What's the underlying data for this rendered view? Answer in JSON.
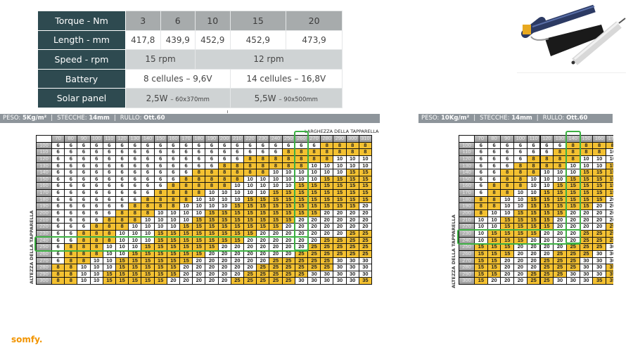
{
  "spec_table": {
    "rows": [
      {
        "label": "Torque - Nm",
        "cells": [
          {
            "text": "3"
          },
          {
            "text": "6"
          },
          {
            "text": "10"
          },
          {
            "text": "15"
          },
          {
            "text": "20"
          }
        ]
      },
      {
        "label": "Length - mm",
        "cells": [
          {
            "text": "417,8"
          },
          {
            "text": "439,9"
          },
          {
            "text": "452,9"
          },
          {
            "text": "452,9"
          },
          {
            "text": "473,9"
          }
        ]
      },
      {
        "label": "Speed - rpm",
        "cells": [
          {
            "text": "15 rpm"
          },
          {
            "text": "12 rpm"
          }
        ]
      },
      {
        "label": "Battery",
        "cells": [
          {
            "text": "8 cellules – 9,6V"
          },
          {
            "text": "14 cellules – 16,8V"
          }
        ]
      },
      {
        "label": "Solar panel",
        "cells": [
          {
            "text": "2,5W",
            "small": "– 60x370mm"
          },
          {
            "text": "5,5W",
            "small": "– 90x500mm"
          }
        ]
      }
    ]
  },
  "colors": {
    "label_bg": "#2e4a50",
    "yellow": "#f4c131",
    "highlight": "#3cb043",
    "brand": "#f29400"
  },
  "left_chart": {
    "info": {
      "peso_label": "PESO:",
      "peso_value": "5Kg/m²",
      "stecche_label": "STECCHE:",
      "stecche_value": "14mm",
      "rullo_label": "RULLO:",
      "rullo_value": "Ott.60"
    },
    "x_label": "LARGHEZZA DELLA TAPPARELLA",
    "y_label": "ALTEZZA DELLA TAPPARELLA",
    "columns": [
      70,
      80,
      90,
      100,
      110,
      120,
      130,
      140,
      150,
      160,
      170,
      180,
      190,
      200,
      210,
      220,
      230,
      240,
      250,
      260,
      270,
      280,
      290,
      300,
      310
    ],
    "rows": [
      100,
      110,
      120,
      130,
      140,
      150,
      160,
      170,
      180,
      190,
      200,
      210,
      220,
      230,
      240,
      250,
      260,
      270,
      280,
      290,
      300
    ],
    "highlight_column": 260,
    "highlight_rows": [
      240,
      250
    ],
    "values": [
      [
        6,
        6,
        6,
        6,
        6,
        6,
        6,
        6,
        6,
        6,
        6,
        6,
        6,
        6,
        6,
        6,
        6,
        6,
        6,
        6,
        6,
        8,
        8,
        8,
        8
      ],
      [
        6,
        6,
        6,
        6,
        6,
        6,
        6,
        6,
        6,
        6,
        6,
        6,
        6,
        6,
        6,
        6,
        6,
        6,
        8,
        8,
        8,
        8,
        8,
        8,
        8
      ],
      [
        6,
        6,
        6,
        6,
        6,
        6,
        6,
        6,
        6,
        6,
        6,
        6,
        6,
        6,
        6,
        8,
        8,
        8,
        8,
        8,
        8,
        8,
        10,
        10,
        10
      ],
      [
        6,
        6,
        6,
        6,
        6,
        6,
        6,
        6,
        6,
        6,
        6,
        6,
        6,
        8,
        8,
        8,
        8,
        8,
        8,
        8,
        10,
        10,
        10,
        10,
        10
      ],
      [
        6,
        6,
        6,
        6,
        6,
        6,
        6,
        6,
        6,
        6,
        6,
        8,
        8,
        8,
        8,
        8,
        8,
        10,
        10,
        10,
        10,
        10,
        10,
        15,
        15
      ],
      [
        6,
        6,
        6,
        6,
        6,
        6,
        6,
        6,
        6,
        6,
        8,
        8,
        8,
        8,
        8,
        10,
        10,
        10,
        10,
        10,
        10,
        15,
        15,
        15,
        15
      ],
      [
        6,
        6,
        6,
        6,
        6,
        6,
        6,
        6,
        6,
        8,
        8,
        8,
        8,
        8,
        10,
        10,
        10,
        10,
        10,
        15,
        15,
        15,
        15,
        15,
        15
      ],
      [
        6,
        6,
        6,
        6,
        6,
        6,
        6,
        6,
        8,
        8,
        8,
        8,
        10,
        10,
        10,
        10,
        10,
        15,
        15,
        15,
        15,
        15,
        15,
        15,
        15
      ],
      [
        6,
        6,
        6,
        6,
        6,
        6,
        6,
        8,
        8,
        8,
        8,
        10,
        10,
        10,
        10,
        15,
        15,
        15,
        15,
        15,
        15,
        15,
        15,
        15,
        15
      ],
      [
        6,
        6,
        6,
        6,
        6,
        6,
        8,
        8,
        8,
        8,
        10,
        10,
        10,
        10,
        15,
        15,
        15,
        15,
        15,
        15,
        15,
        15,
        15,
        15,
        20
      ],
      [
        6,
        6,
        6,
        6,
        6,
        8,
        8,
        8,
        10,
        10,
        10,
        10,
        15,
        15,
        15,
        15,
        15,
        15,
        15,
        15,
        15,
        20,
        20,
        20,
        20
      ],
      [
        6,
        6,
        6,
        6,
        8,
        8,
        8,
        10,
        10,
        10,
        10,
        15,
        15,
        15,
        15,
        15,
        15,
        15,
        15,
        20,
        20,
        20,
        20,
        20,
        20
      ],
      [
        6,
        6,
        6,
        8,
        8,
        8,
        10,
        10,
        10,
        10,
        15,
        15,
        15,
        15,
        15,
        15,
        15,
        15,
        20,
        20,
        20,
        20,
        20,
        20,
        20
      ],
      [
        6,
        6,
        8,
        8,
        8,
        10,
        10,
        10,
        15,
        15,
        15,
        15,
        15,
        15,
        15,
        15,
        20,
        20,
        20,
        20,
        20,
        20,
        20,
        25,
        25
      ],
      [
        6,
        6,
        8,
        8,
        8,
        10,
        10,
        10,
        15,
        15,
        15,
        15,
        15,
        15,
        15,
        20,
        20,
        20,
        20,
        20,
        20,
        25,
        25,
        25,
        25
      ],
      [
        6,
        8,
        8,
        8,
        10,
        10,
        10,
        15,
        15,
        15,
        15,
        15,
        15,
        20,
        20,
        20,
        20,
        20,
        20,
        20,
        25,
        25,
        25,
        25,
        25
      ],
      [
        6,
        8,
        8,
        8,
        10,
        10,
        15,
        15,
        15,
        15,
        15,
        15,
        20,
        20,
        20,
        20,
        20,
        20,
        20,
        25,
        25,
        25,
        25,
        25,
        25
      ],
      [
        6,
        8,
        8,
        10,
        10,
        15,
        15,
        15,
        15,
        15,
        15,
        20,
        20,
        20,
        20,
        20,
        20,
        25,
        25,
        25,
        25,
        25,
        30,
        30,
        30
      ],
      [
        8,
        8,
        10,
        10,
        10,
        15,
        15,
        15,
        15,
        15,
        20,
        20,
        20,
        20,
        20,
        20,
        25,
        25,
        25,
        25,
        25,
        25,
        30,
        30,
        30
      ],
      [
        8,
        8,
        10,
        10,
        15,
        15,
        15,
        15,
        15,
        15,
        20,
        20,
        20,
        20,
        20,
        25,
        25,
        25,
        25,
        25,
        30,
        30,
        30,
        30,
        30
      ],
      [
        8,
        8,
        10,
        10,
        15,
        15,
        15,
        15,
        15,
        20,
        20,
        20,
        20,
        20,
        25,
        25,
        25,
        25,
        25,
        30,
        30,
        30,
        30,
        30,
        35
      ]
    ]
  },
  "right_chart": {
    "info": {
      "peso_label": "PESO:",
      "peso_value": "10Kg/m²",
      "stecche_label": "STECCHE:",
      "stecche_value": "14mm",
      "rullo_label": "RULLO:",
      "rullo_value": "Ott.60"
    },
    "y_label": "ALTEZZA DELLA TAPPARELLA",
    "columns": [
      70,
      80,
      90,
      100,
      110,
      120,
      130,
      140,
      150,
      160,
      170
    ],
    "rows": [
      100,
      110,
      120,
      130,
      140,
      150,
      160,
      170,
      180,
      190,
      200,
      210,
      220,
      230,
      240,
      250,
      260,
      270,
      280,
      290,
      300
    ],
    "highlight_column": 140,
    "highlight_rows": [
      230,
      240
    ],
    "values": [
      [
        6,
        6,
        6,
        6,
        6,
        6,
        6,
        8,
        8,
        8,
        8
      ],
      [
        6,
        6,
        6,
        6,
        6,
        6,
        8,
        8,
        8,
        8,
        10
      ],
      [
        6,
        6,
        6,
        6,
        8,
        8,
        8,
        8,
        10,
        10,
        10
      ],
      [
        6,
        6,
        6,
        8,
        8,
        8,
        8,
        10,
        10,
        10,
        15
      ],
      [
        6,
        6,
        8,
        8,
        8,
        10,
        10,
        10,
        15,
        15,
        15
      ],
      [
        6,
        6,
        8,
        8,
        10,
        10,
        10,
        15,
        15,
        15,
        15
      ],
      [
        6,
        8,
        8,
        8,
        10,
        10,
        15,
        15,
        15,
        15,
        15
      ],
      [
        6,
        8,
        8,
        10,
        10,
        15,
        15,
        15,
        15,
        15,
        15
      ],
      [
        8,
        8,
        10,
        10,
        15,
        15,
        15,
        15,
        15,
        15,
        20
      ],
      [
        8,
        8,
        10,
        10,
        15,
        15,
        15,
        15,
        15,
        20,
        20
      ],
      [
        8,
        10,
        10,
        15,
        15,
        15,
        15,
        20,
        20,
        20,
        20
      ],
      [
        10,
        10,
        15,
        15,
        15,
        15,
        20,
        20,
        20,
        20,
        20
      ],
      [
        10,
        10,
        15,
        15,
        15,
        15,
        20,
        20,
        20,
        20,
        25
      ],
      [
        10,
        15,
        15,
        15,
        15,
        20,
        20,
        20,
        25,
        25,
        25
      ],
      [
        10,
        15,
        15,
        15,
        20,
        20,
        20,
        20,
        25,
        25,
        25
      ],
      [
        15,
        15,
        15,
        20,
        20,
        20,
        20,
        25,
        25,
        25,
        30
      ],
      [
        15,
        15,
        15,
        20,
        20,
        20,
        25,
        25,
        25,
        30,
        30
      ],
      [
        15,
        15,
        20,
        20,
        20,
        25,
        25,
        25,
        30,
        30,
        30
      ],
      [
        15,
        15,
        20,
        20,
        20,
        25,
        25,
        25,
        30,
        30,
        35
      ],
      [
        15,
        15,
        20,
        20,
        25,
        25,
        25,
        30,
        30,
        30,
        35
      ],
      [
        15,
        20,
        20,
        20,
        25,
        25,
        30,
        30,
        30,
        35,
        35
      ]
    ]
  },
  "product_image": {
    "icon": "motor-battery-solar-panel-photo"
  },
  "logo": {
    "text": "somfy."
  }
}
